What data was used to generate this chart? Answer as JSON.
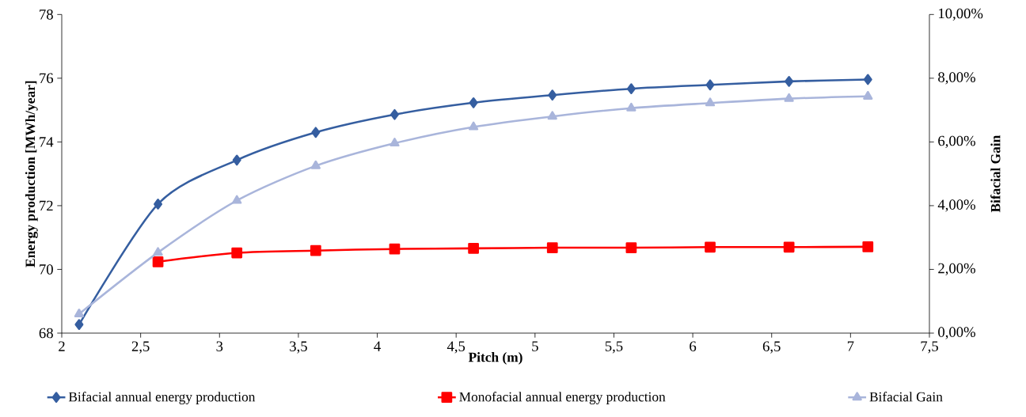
{
  "chart_data": {
    "type": "line",
    "xlabel": "Pitch  (m)",
    "ylabel": "Energy production [MWh/year]",
    "y2label": "Bifacial Gain",
    "x": [
      2.11,
      2.61,
      3.11,
      3.61,
      4.11,
      4.61,
      5.11,
      5.61,
      6.11,
      6.61,
      7.11
    ],
    "series": [
      {
        "name": "Bifacial annual energy production",
        "color": "#355ea0",
        "marker": "diamond",
        "values": [
          68.27,
          72.05,
          73.43,
          74.3,
          74.86,
          75.23,
          75.47,
          75.67,
          75.79,
          75.9,
          75.96
        ]
      },
      {
        "name": "Monofacial annual energy production",
        "color": "#ff0000",
        "marker": "square",
        "values": [
          null,
          70.24,
          70.52,
          70.59,
          70.64,
          70.66,
          70.68,
          70.68,
          70.7,
          70.7,
          70.71
        ]
      },
      {
        "name": "Bifacial Gain",
        "color": "#a9b5db",
        "marker": "triangle",
        "axis": "y2",
        "values": [
          0.6,
          2.53,
          4.16,
          5.25,
          5.96,
          6.47,
          6.8,
          7.06,
          7.22,
          7.36,
          7.43
        ]
      }
    ],
    "xlim": [
      2,
      7.5
    ],
    "xticks": [
      2,
      {
        "value": 2.5,
        "label": "2,5"
      },
      3,
      {
        "value": 3.5,
        "label": "3,5"
      },
      4,
      {
        "value": 4.5,
        "label": "4,5"
      },
      5,
      {
        "value": 5.5,
        "label": "5,5"
      },
      6,
      {
        "value": 6.5,
        "label": "6,5"
      },
      7,
      {
        "value": 7.5,
        "label": "7,5"
      }
    ],
    "ylim": [
      68,
      78
    ],
    "yticks": [
      68,
      70,
      72,
      74,
      76,
      78
    ],
    "y2lim": [
      0,
      10
    ],
    "y2ticks": [
      {
        "value": 0,
        "label": "0,00%"
      },
      {
        "value": 2,
        "label": "2,00%"
      },
      {
        "value": 4,
        "label": "4,00%"
      },
      {
        "value": 6,
        "label": "6,00%"
      },
      {
        "value": 8,
        "label": "8,00%"
      },
      {
        "value": 10,
        "label": "10,00%"
      }
    ],
    "grid": false,
    "legend": "bottom",
    "line_style": "solid"
  }
}
